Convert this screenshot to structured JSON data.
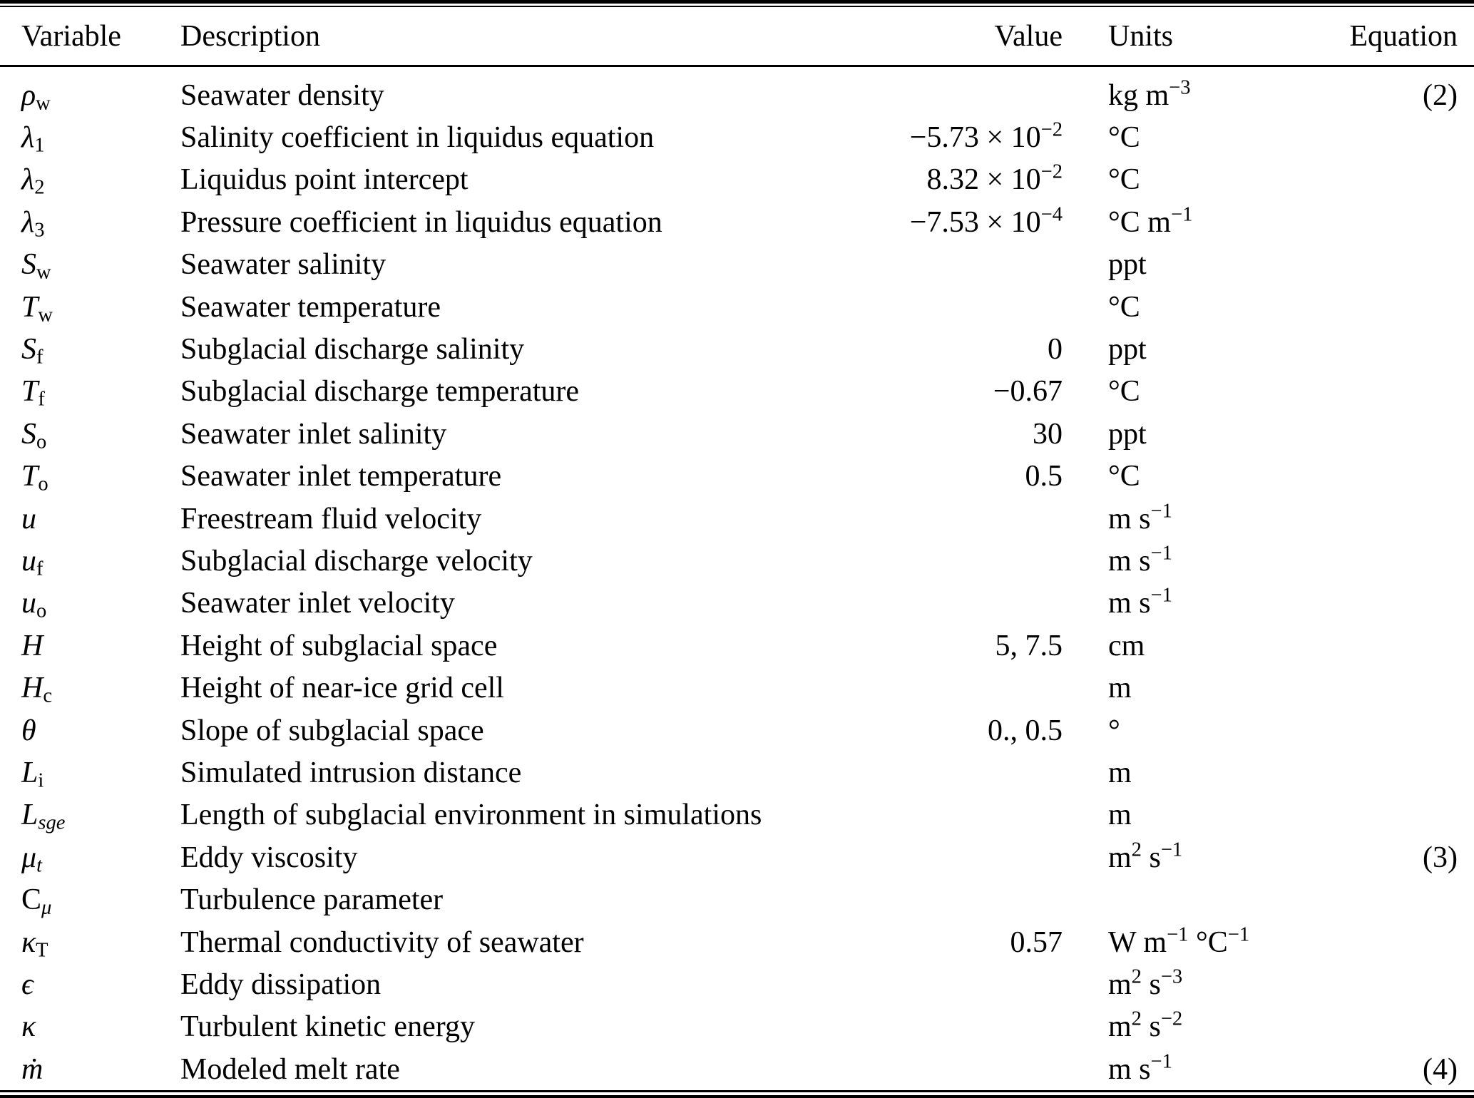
{
  "table": {
    "columns": [
      "Variable",
      "Description",
      "Value",
      "Units",
      "Equation"
    ],
    "rows": [
      {
        "variable": "*ρ*_{w}",
        "description": "Seawater density",
        "value": "",
        "units": "kg m^{−3}",
        "equation": "(2)"
      },
      {
        "variable": "*λ*_{1}",
        "description": "Salinity coefficient in liquidus equation",
        "value": "−5.73 × 10^{−2}",
        "units": "°C",
        "equation": ""
      },
      {
        "variable": "*λ*_{2}",
        "description": "Liquidus point intercept",
        "value": "8.32 × 10^{−2}",
        "units": "°C",
        "equation": ""
      },
      {
        "variable": "*λ*_{3}",
        "description": "Pressure coefficient in liquidus equation",
        "value": "−7.53 × 10^{−4}",
        "units": "°C m^{−1}",
        "equation": ""
      },
      {
        "variable": "*S*_{w}",
        "description": "Seawater salinity",
        "value": "",
        "units": "ppt",
        "equation": ""
      },
      {
        "variable": "*T*_{w}",
        "description": "Seawater temperature",
        "value": "",
        "units": "°C",
        "equation": ""
      },
      {
        "variable": "*S*_{f}",
        "description": "Subglacial discharge salinity",
        "value": "0",
        "units": "ppt",
        "equation": ""
      },
      {
        "variable": "*T*_{f}",
        "description": "Subglacial discharge temperature",
        "value": "−0.67",
        "units": "°C",
        "equation": ""
      },
      {
        "variable": "*S*_{o}",
        "description": "Seawater inlet salinity",
        "value": "30",
        "units": "ppt",
        "equation": ""
      },
      {
        "variable": "*T*_{o}",
        "description": "Seawater inlet temperature",
        "value": "0.5",
        "units": "°C",
        "equation": ""
      },
      {
        "variable": "*u*",
        "description": "Freestream fluid velocity",
        "value": "",
        "units": "m s^{−1}",
        "equation": ""
      },
      {
        "variable": "*u*_{f}",
        "description": "Subglacial discharge velocity",
        "value": "",
        "units": "m s^{−1}",
        "equation": ""
      },
      {
        "variable": "*u*_{o}",
        "description": "Seawater inlet velocity",
        "value": "",
        "units": "m s^{−1}",
        "equation": ""
      },
      {
        "variable": "*H*",
        "description": "Height of subglacial space",
        "value": "5, 7.5",
        "units": "cm",
        "equation": ""
      },
      {
        "variable": "*H*_{c}",
        "description": "Height of near-ice grid cell",
        "value": "",
        "units": "m",
        "equation": ""
      },
      {
        "variable": "*θ*",
        "description": "Slope of subglacial space",
        "value": "0., 0.5",
        "units": "°",
        "equation": ""
      },
      {
        "variable": "*L*_{i}",
        "description": "Simulated intrusion distance",
        "value": "",
        "units": "m",
        "equation": ""
      },
      {
        "variable": "*L*_{*sge*}",
        "description": "Length of subglacial environment in simulations",
        "value": "",
        "units": "m",
        "equation": ""
      },
      {
        "variable": "*μ*_{*t*}",
        "description": "Eddy viscosity",
        "value": "",
        "units": "m^{2} s^{−1}",
        "equation": "(3)"
      },
      {
        "variable": "C_{*μ*}",
        "description": "Turbulence parameter",
        "value": "",
        "units": "",
        "equation": ""
      },
      {
        "variable": "*κ*_{T}",
        "description": "Thermal conductivity of seawater",
        "value": "0.57",
        "units": "W m^{−1} °C^{−1}",
        "equation": ""
      },
      {
        "variable": "*ϵ*",
        "description": "Eddy dissipation",
        "value": "",
        "units": "m^{2} s^{−3}",
        "equation": ""
      },
      {
        "variable": "*κ*",
        "description": "Turbulent kinetic energy",
        "value": "",
        "units": "m^{2} s^{−2}",
        "equation": ""
      },
      {
        "variable": "*ṁ*",
        "description": "Modeled melt rate",
        "value": "",
        "units": "m s^{−1}",
        "equation": "(4)"
      }
    ]
  }
}
